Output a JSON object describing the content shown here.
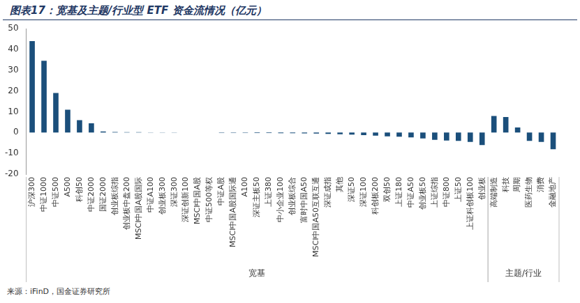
{
  "chart_data": {
    "type": "bar",
    "title": "图表17：宽基及主题/行业型 ETF 资金流情况（亿元）",
    "source": "来源：iFinD，国金证券研究所",
    "categories": [
      "沪深300",
      "中证1000",
      "中证500",
      "A500",
      "科创50",
      "中证2000",
      "国证2000",
      "创业板综指",
      "创业板中盘200",
      "MSCI中国A股国际",
      "中证A100",
      "创业板300",
      "深证300",
      "深证创新100",
      "MSCI中国A股",
      "中证500等权",
      "中证A股",
      "MSCI中国A股国际通",
      "A100",
      "深证主板50",
      "上证380",
      "中小企业100",
      "创业板综合",
      "富时中国A50",
      "MSCI中国A50互联互通",
      "深证成指",
      "其他",
      "深证50",
      "深证100",
      "科创板200",
      "双创50",
      "上证180",
      "中证A50",
      "创业板50",
      "上证综指",
      "中证800",
      "上证50",
      "上证科创板100",
      "创业板",
      "高端制造",
      "科技",
      "周期",
      "医药生物",
      "消费",
      "金融地产"
    ],
    "values": [
      44,
      34.5,
      19,
      11,
      6,
      4.5,
      0.5,
      0.3,
      0.2,
      0.2,
      0.1,
      0.1,
      0.1,
      0.05,
      0,
      0,
      -0.1,
      -0.1,
      -0.1,
      -0.2,
      -0.2,
      -0.3,
      -0.3,
      -0.4,
      -0.5,
      -0.6,
      -0.8,
      -1,
      -1.2,
      -1.5,
      -1.8,
      -2,
      -2.3,
      -2.8,
      -3.5,
      -3.8,
      -4,
      -4.5,
      -6,
      8,
      7.5,
      2.5,
      -4,
      -4.5,
      -8
    ],
    "color": "#1b4f7b",
    "groups": [
      {
        "name": "宽基",
        "start": "沪深300",
        "end": "创业板"
      },
      {
        "name": "主题/行业",
        "start": "高端制造",
        "end": "金融地产"
      }
    ],
    "ylim": [
      -20,
      50
    ],
    "yticks": [
      -20,
      -10,
      0,
      10,
      20,
      30,
      40,
      50
    ],
    "grid": false
  }
}
